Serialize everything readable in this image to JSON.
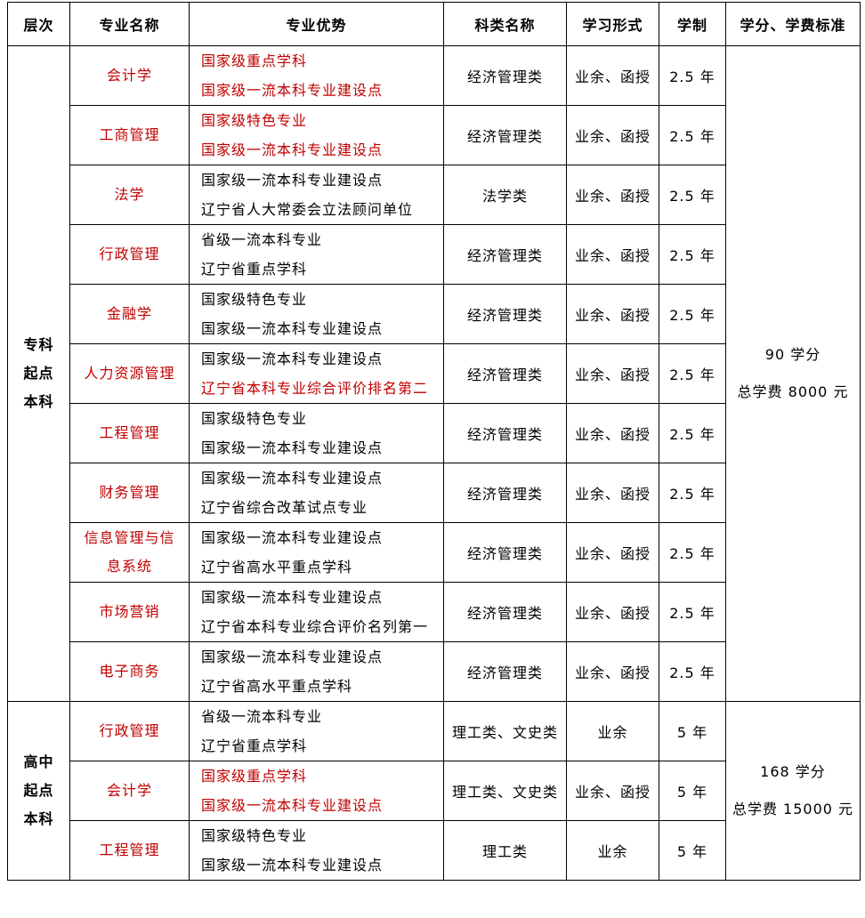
{
  "headers": [
    "层次",
    "专业名称",
    "专业优势",
    "科类名称",
    "学习形式",
    "学制",
    "学分、学费标准"
  ],
  "colors": {
    "red": "#c00000",
    "text": "#000000"
  },
  "groups": [
    {
      "level": [
        "专科",
        "起点",
        "本科"
      ],
      "credit_lines": [
        "90 学分",
        "总学费  8000 元"
      ],
      "rows": [
        {
          "name": "会计学",
          "advantages": [
            {
              "text": "国家级重点学科",
              "red": true
            },
            {
              "text": "国家级一流本科专业建设点",
              "red": true
            }
          ],
          "category": "经济管理类",
          "form": "业余、函授",
          "duration": "2.5 年"
        },
        {
          "name": "工商管理",
          "advantages": [
            {
              "text": "国家级特色专业",
              "red": true
            },
            {
              "text": "国家级一流本科专业建设点",
              "red": true
            }
          ],
          "category": "经济管理类",
          "form": "业余、函授",
          "duration": "2.5 年"
        },
        {
          "name": "法学",
          "advantages": [
            {
              "text": "国家级一流本科专业建设点",
              "red": false
            },
            {
              "text": "辽宁省人大常委会立法顾问单位",
              "red": false
            }
          ],
          "category": "法学类",
          "form": "业余、函授",
          "duration": "2.5 年"
        },
        {
          "name": "行政管理",
          "advantages": [
            {
              "text": "省级一流本科专业",
              "red": false
            },
            {
              "text": "辽宁省重点学科",
              "red": false
            }
          ],
          "category": "经济管理类",
          "form": "业余、函授",
          "duration": "2.5 年"
        },
        {
          "name": "金融学",
          "advantages": [
            {
              "text": "国家级特色专业",
              "red": false
            },
            {
              "text": "国家级一流本科专业建设点",
              "red": false
            }
          ],
          "category": "经济管理类",
          "form": "业余、函授",
          "duration": "2.5 年"
        },
        {
          "name": "人力资源管理",
          "advantages": [
            {
              "text": "国家级一流本科专业建设点",
              "red": false
            },
            {
              "text": "辽宁省本科专业综合评价排名第二",
              "red": true
            }
          ],
          "category": "经济管理类",
          "form": "业余、函授",
          "duration": "2.5 年"
        },
        {
          "name": "工程管理",
          "advantages": [
            {
              "text": "国家级特色专业",
              "red": false
            },
            {
              "text": "国家级一流本科专业建设点",
              "red": false
            }
          ],
          "category": "经济管理类",
          "form": "业余、函授",
          "duration": "2.5 年"
        },
        {
          "name": "财务管理",
          "advantages": [
            {
              "text": "国家级一流本科专业建设点",
              "red": false
            },
            {
              "text": "辽宁省综合改革试点专业",
              "red": false
            }
          ],
          "category": "经济管理类",
          "form": "业余、函授",
          "duration": "2.5 年"
        },
        {
          "name": "信息管理与信息系统",
          "advantages": [
            {
              "text": "国家级一流本科专业建设点",
              "red": false
            },
            {
              "text": "辽宁省高水平重点学科",
              "red": false
            }
          ],
          "category": "经济管理类",
          "form": "业余、函授",
          "duration": "2.5 年"
        },
        {
          "name": "市场营销",
          "advantages": [
            {
              "text": "国家级一流本科专业建设点",
              "red": false
            },
            {
              "text": "辽宁省本科专业综合评价名列第一",
              "red": false
            }
          ],
          "category": "经济管理类",
          "form": "业余、函授",
          "duration": "2.5 年"
        },
        {
          "name": "电子商务",
          "advantages": [
            {
              "text": "国家级一流本科专业建设点",
              "red": false
            },
            {
              "text": "辽宁省高水平重点学科",
              "red": false
            }
          ],
          "category": "经济管理类",
          "form": "业余、函授",
          "duration": "2.5 年"
        }
      ]
    },
    {
      "level": [
        "高中",
        "起点",
        "本科"
      ],
      "credit_lines": [
        "168 学分",
        "总学费  15000 元"
      ],
      "rows": [
        {
          "name": "行政管理",
          "advantages": [
            {
              "text": "省级一流本科专业",
              "red": false
            },
            {
              "text": "辽宁省重点学科",
              "red": false
            }
          ],
          "category": "理工类、文史类",
          "form": "业余",
          "duration": "5 年"
        },
        {
          "name": "会计学",
          "advantages": [
            {
              "text": "国家级重点学科",
              "red": true
            },
            {
              "text": "国家级一流本科专业建设点",
              "red": true
            }
          ],
          "category": "理工类、文史类",
          "form": "业余、函授",
          "duration": "5 年"
        },
        {
          "name": "工程管理",
          "advantages": [
            {
              "text": "国家级特色专业",
              "red": false
            },
            {
              "text": "国家级一流本科专业建设点",
              "red": false
            }
          ],
          "category": "理工类",
          "form": "业余",
          "duration": "5 年"
        }
      ]
    }
  ]
}
